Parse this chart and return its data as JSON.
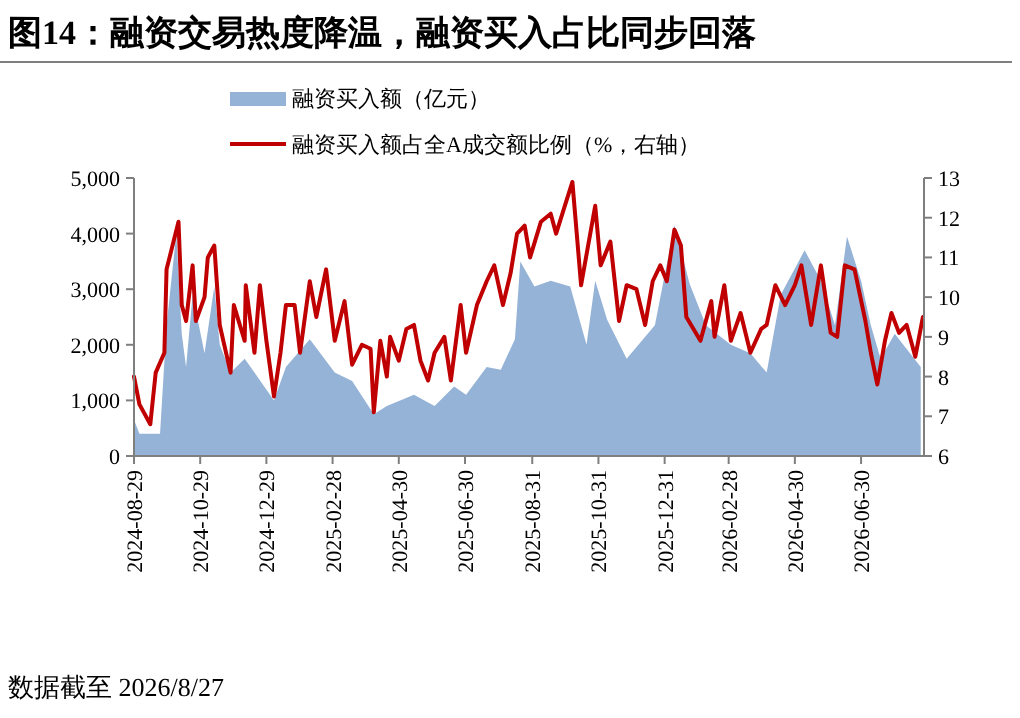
{
  "chart_data": {
    "type": "area",
    "title": "图14：融资交易热度降温，融资买入占比同步回落",
    "annotations": [
      "数据截至 2026/8/27"
    ],
    "legend": "top",
    "grid": false,
    "xlim": [
      "2024-08-29",
      "2026-08-27"
    ],
    "xticks": [
      "2024-08-29",
      "2024-10-29",
      "2024-12-29",
      "2025-02-28",
      "2025-04-30",
      "2025-06-30",
      "2025-08-31",
      "2025-10-31",
      "2025-12-31",
      "2026-02-28",
      "2026-04-30",
      "2026-06-30"
    ],
    "ylim": [
      0,
      5000
    ],
    "yticks": [
      0,
      {
        "value": 1000,
        "label": "1,000"
      },
      {
        "value": 2000,
        "label": "2,000"
      },
      {
        "value": 3000,
        "label": "3,000"
      },
      {
        "value": 4000,
        "label": "4,000"
      },
      {
        "value": 5000,
        "label": "5,000"
      }
    ],
    "y2lim": [
      6,
      13
    ],
    "y2ticks": [
      6,
      7,
      8,
      9,
      10,
      11,
      12,
      13
    ],
    "series": [
      {
        "name": "融资买入额（亿元）",
        "type": "area",
        "color": "#95b3d7",
        "x": [
          "2024-08-29",
          "2024-09-03",
          "2024-09-22",
          "2024-09-28",
          "2024-10-07",
          "2024-10-12",
          "2024-10-16",
          "2024-10-22",
          "2024-11-02",
          "2024-11-11",
          "2024-11-16",
          "2024-11-26",
          "2024-12-09",
          "2024-12-18",
          "2025-01-05",
          "2025-01-16",
          "2025-02-07",
          "2025-03-02",
          "2025-03-18",
          "2025-04-07",
          "2025-04-19",
          "2025-05-14",
          "2025-06-02",
          "2025-06-20",
          "2025-07-01",
          "2025-07-20",
          "2025-08-02",
          "2025-08-15",
          "2025-08-20",
          "2025-09-02",
          "2025-09-17",
          "2025-10-05",
          "2025-10-20",
          "2025-10-28",
          "2025-11-08",
          "2025-11-26",
          "2025-12-22",
          "2026-01-09",
          "2026-01-23",
          "2026-02-07",
          "2026-03-02",
          "2026-03-20",
          "2026-04-04",
          "2026-04-17",
          "2026-05-09",
          "2026-05-24",
          "2026-06-06",
          "2026-06-17",
          "2026-06-30",
          "2026-07-09",
          "2026-07-18",
          "2026-07-31",
          "2026-08-24"
        ],
        "values": [
          650,
          400,
          400,
          2350,
          4000,
          2200,
          1600,
          2900,
          1850,
          3050,
          2000,
          1500,
          1750,
          1500,
          1000,
          1600,
          2100,
          1500,
          1350,
          750,
          900,
          1100,
          900,
          1250,
          1100,
          1600,
          1550,
          2100,
          3500,
          3050,
          3150,
          3050,
          2000,
          3150,
          2450,
          1750,
          2350,
          4150,
          3100,
          2350,
          2000,
          1850,
          1500,
          2900,
          3700,
          3150,
          2350,
          3950,
          3150,
          2350,
          1750,
          2200,
          1600
        ]
      },
      {
        "name": "融资买入额占全A成交额比例（%，右轴）",
        "type": "line",
        "axis": "y2",
        "color": "#c00000",
        "x": [
          "2024-08-29",
          "2024-09-03",
          "2024-09-13",
          "2024-09-18",
          "2024-09-26",
          "2024-09-28",
          "2024-10-09",
          "2024-10-12",
          "2024-10-16",
          "2024-10-22",
          "2024-10-25",
          "2024-11-02",
          "2024-11-05",
          "2024-11-11",
          "2024-11-16",
          "2024-11-26",
          "2024-11-29",
          "2024-12-09",
          "2024-12-10",
          "2024-12-18",
          "2024-12-23",
          "2024-12-29",
          "2025-01-05",
          "2025-01-11",
          "2025-01-16",
          "2025-01-24",
          "2025-01-29",
          "2025-02-07",
          "2025-02-13",
          "2025-02-22",
          "2025-03-02",
          "2025-03-11",
          "2025-03-18",
          "2025-03-27",
          "2025-04-04",
          "2025-04-07",
          "2025-04-13",
          "2025-04-19",
          "2025-04-22",
          "2025-04-30",
          "2025-05-07",
          "2025-05-14",
          "2025-05-20",
          "2025-05-27",
          "2025-06-02",
          "2025-06-11",
          "2025-06-17",
          "2025-06-26",
          "2025-07-01",
          "2025-07-11",
          "2025-07-20",
          "2025-07-27",
          "2025-08-04",
          "2025-08-11",
          "2025-08-17",
          "2025-08-24",
          "2025-08-29",
          "2025-09-08",
          "2025-09-17",
          "2025-09-22",
          "2025-09-30",
          "2025-10-07",
          "2025-10-15",
          "2025-10-28",
          "2025-11-02",
          "2025-11-11",
          "2025-11-19",
          "2025-11-26",
          "2025-12-05",
          "2025-12-13",
          "2025-12-20",
          "2025-12-27",
          "2026-01-02",
          "2026-01-09",
          "2026-01-15",
          "2026-01-20",
          "2026-02-02",
          "2026-02-12",
          "2026-02-15",
          "2026-02-24",
          "2026-03-02",
          "2026-03-11",
          "2026-03-20",
          "2026-03-30",
          "2026-04-04",
          "2026-04-12",
          "2026-04-21",
          "2026-04-30",
          "2026-05-06",
          "2026-05-15",
          "2026-05-24",
          "2026-06-02",
          "2026-06-08",
          "2026-06-15",
          "2026-06-24",
          "2026-07-04",
          "2026-07-09",
          "2026-07-15",
          "2026-07-22",
          "2026-07-28",
          "2026-08-04",
          "2026-08-11",
          "2026-08-19",
          "2026-08-26"
        ],
        "values": [
          8.0,
          7.3,
          6.8,
          8.1,
          8.6,
          10.7,
          11.9,
          9.8,
          9.4,
          10.8,
          9.4,
          10.0,
          11.0,
          11.3,
          9.3,
          8.1,
          9.8,
          8.9,
          10.3,
          8.6,
          10.3,
          8.9,
          7.5,
          8.6,
          9.8,
          9.8,
          8.6,
          10.4,
          9.5,
          10.7,
          8.9,
          9.9,
          8.3,
          8.8,
          8.7,
          7.1,
          8.9,
          8.0,
          9.0,
          8.4,
          9.2,
          9.3,
          8.4,
          7.9,
          8.6,
          9.0,
          7.9,
          9.8,
          8.6,
          9.8,
          10.4,
          10.8,
          9.8,
          10.6,
          11.6,
          11.8,
          11.0,
          11.9,
          12.1,
          11.6,
          12.3,
          12.9,
          10.3,
          12.3,
          10.8,
          11.4,
          9.4,
          10.3,
          10.2,
          9.3,
          10.4,
          10.8,
          10.4,
          11.7,
          11.3,
          9.5,
          8.9,
          9.9,
          9.0,
          10.3,
          8.9,
          9.6,
          8.6,
          9.2,
          9.3,
          10.3,
          9.8,
          10.3,
          10.8,
          9.3,
          10.8,
          9.1,
          9.0,
          10.8,
          10.7,
          9.4,
          8.6,
          7.8,
          8.9,
          9.6,
          9.1,
          9.3,
          8.5,
          9.5
        ]
      }
    ]
  }
}
